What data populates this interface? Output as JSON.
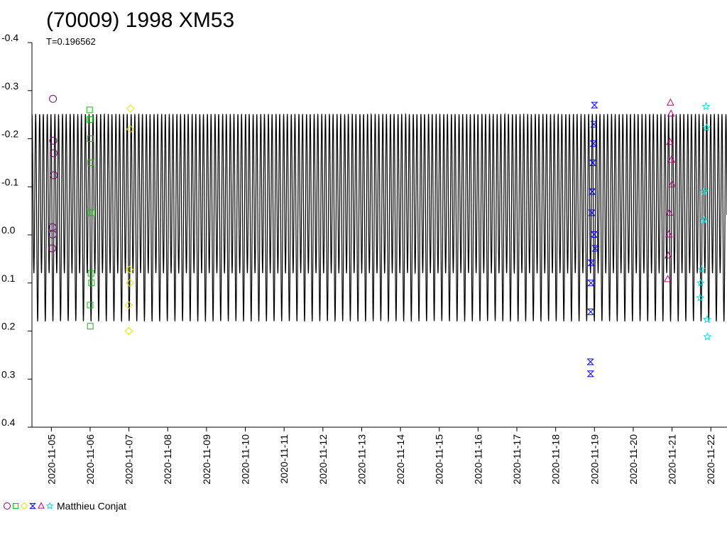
{
  "chart_data": {
    "type": "scatter",
    "title": "(70009) 1998 XM53",
    "subtitle": "T=0.196562",
    "legend_label": "Matthieu Conjat",
    "ylim": [
      -0.4,
      0.4
    ],
    "y_inverted": true,
    "yticks": [
      -0.4,
      -0.3,
      -0.2,
      -0.1,
      {
        "value": 0,
        "label": "0.0"
      },
      0.1,
      0.2,
      0.3,
      0.4
    ],
    "xlim": [
      "2020-11-04T12:00Z",
      "2020-11-22T10:00Z"
    ],
    "xticks": [
      "2020-11-05",
      "2020-11-06",
      "2020-11-07",
      "2020-11-08",
      "2020-11-09",
      "2020-11-10",
      "2020-11-11",
      "2020-11-12",
      "2020-11-13",
      "2020-11-14",
      "2020-11-15",
      "2020-11-16",
      "2020-11-17",
      "2020-11-18",
      "2020-11-19",
      "2020-11-20",
      "2020-11-21",
      "2020-11-22"
    ],
    "model": {
      "color": "#000000",
      "period": 0.196562,
      "max": -0.25,
      "min1": 0.08,
      "min2": 0.18
    },
    "series": [
      {
        "marker": "circle",
        "color": "#800080",
        "x": [
          "2020-11-05T01:00Z",
          "2020-11-05T01:10Z",
          "2020-11-05T01:20Z",
          "2020-11-05T01:30Z",
          "2020-11-05T00:40Z",
          "2020-11-05T00:50Z",
          "2020-11-05T00:30Z"
        ],
        "values": [
          -0.283,
          -0.196,
          -0.17,
          -0.124,
          -0.016,
          -0.001,
          0.028
        ]
      },
      {
        "marker": "square",
        "color": "#00c000",
        "x": [
          "2020-11-05T23:40Z",
          "2020-11-05T23:50Z",
          "2020-11-06T00:10Z",
          "2020-11-06T00:20Z",
          "2020-11-06T00:40Z",
          "2020-11-06T00:30Z",
          "2020-11-06T00:50Z",
          "2020-11-06T00:00Z",
          "2020-11-06T00:05Z"
        ],
        "values": [
          -0.26,
          -0.24,
          -0.2,
          -0.15,
          -0.046,
          0.08,
          0.1,
          0.146,
          0.19
        ]
      },
      {
        "marker": "diamond",
        "color": "#e0e000",
        "x": [
          "2020-11-07T01:00Z",
          "2020-11-07T00:50Z",
          "2020-11-07T00:20Z",
          "2020-11-07T00:40Z",
          "2020-11-06T23:50Z",
          "2020-11-06T23:55Z"
        ],
        "values": [
          -0.263,
          -0.22,
          0.072,
          0.1,
          0.146,
          0.2
        ]
      },
      {
        "marker": "hourglass",
        "color": "#0000ff",
        "x": [
          "2020-11-19T00:00Z",
          "2020-11-18T23:40Z",
          "2020-11-18T23:20Z",
          "2020-11-18T23:00Z",
          "2020-11-18T22:40Z",
          "2020-11-18T22:20Z",
          "2020-11-18T23:50Z",
          "2020-11-19T00:30Z",
          "2020-11-18T22:00Z",
          "2020-11-18T21:50Z",
          "2020-11-18T21:40Z",
          "2020-11-18T21:30Z",
          "2020-11-18T21:35Z"
        ],
        "values": [
          -0.27,
          -0.23,
          -0.19,
          -0.15,
          -0.09,
          -0.046,
          -0.001,
          0.028,
          0.058,
          0.1,
          0.16,
          0.264,
          0.289
        ]
      },
      {
        "marker": "triangle",
        "color": "#c00080",
        "x": [
          "2020-11-20T23:00Z",
          "2020-11-20T23:20Z",
          "2020-11-20T22:40Z",
          "2020-11-20T23:40Z",
          "2020-11-21T00:00Z",
          "2020-11-20T22:20Z",
          "2020-11-20T22:00Z",
          "2020-11-20T21:40Z",
          "2020-11-20T21:20Z"
        ],
        "values": [
          -0.275,
          -0.252,
          -0.193,
          -0.156,
          -0.105,
          -0.046,
          -0.001,
          0.043,
          0.092
        ]
      },
      {
        "marker": "star",
        "color": "#00e0e0",
        "x": [
          "2020-11-21T21:00Z",
          "2020-11-21T21:20Z",
          "2020-11-21T20:00Z",
          "2020-11-21T19:40Z",
          "2020-11-21T18:20Z",
          "2020-11-21T17:40Z",
          "2020-11-21T17:20Z",
          "2020-11-21T21:40Z",
          "2020-11-21T21:50Z"
        ],
        "values": [
          -0.267,
          -0.223,
          -0.09,
          -0.031,
          0.072,
          0.1,
          0.131,
          0.176,
          0.212
        ]
      }
    ]
  }
}
